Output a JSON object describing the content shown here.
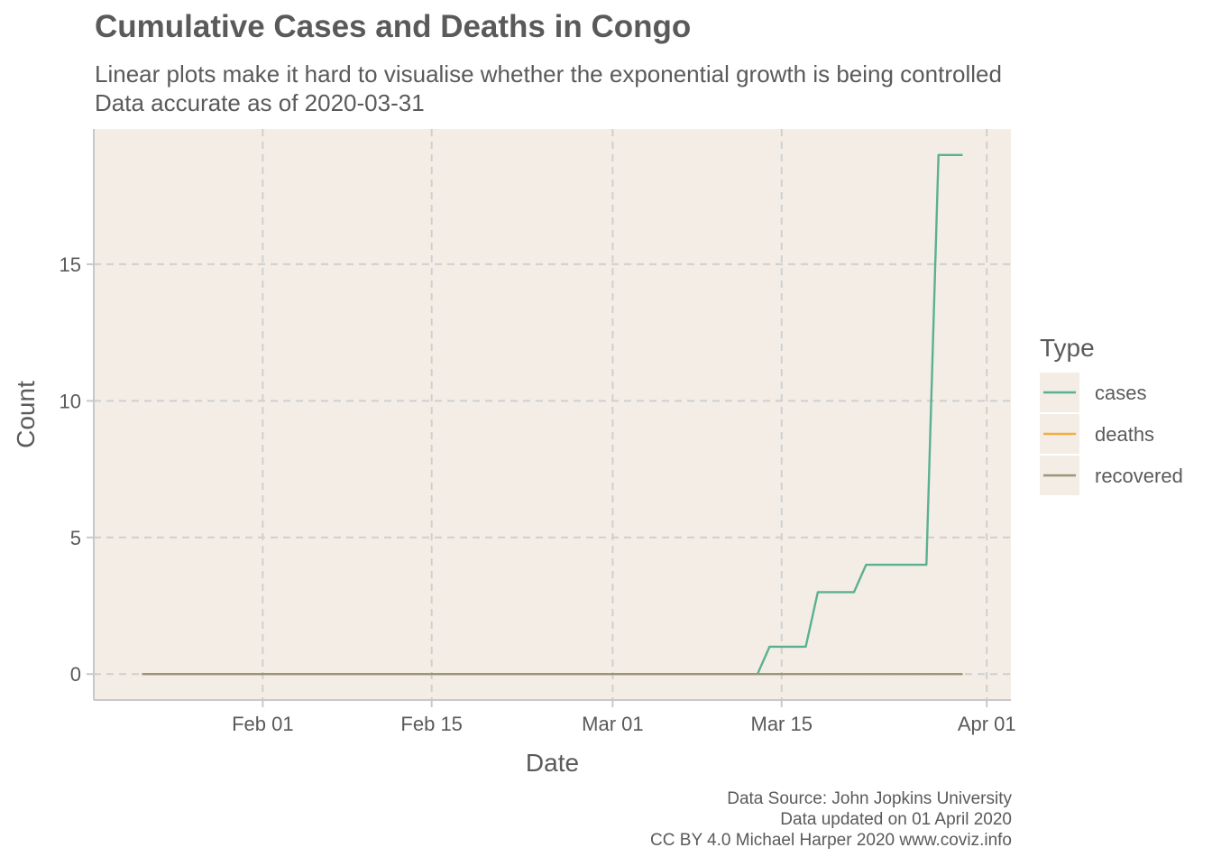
{
  "title": "Cumulative Cases and Deaths in Congo",
  "subtitle_line1": "Linear plots make it hard to visualise whether the exponential growth is being controlled",
  "subtitle_line2": "Data accurate as of 2020-03-31",
  "caption": {
    "line1": "Data Source: John Jopkins University",
    "line2": "Data updated on 01 April 2020",
    "line3": "CC BY 4.0 Michael Harper 2020 www.coviz.info"
  },
  "colors": {
    "panel_bg": "#f3ede6",
    "grid": "#cfcfcf",
    "axis": "#c8c8c8",
    "text": "#5a5a5a"
  },
  "chart_data": {
    "type": "line",
    "xlabel": "Date",
    "ylabel": "Count",
    "x_ticks": [
      {
        "date": "2020-02-01",
        "label": "Feb 01"
      },
      {
        "date": "2020-02-15",
        "label": "Feb 15"
      },
      {
        "date": "2020-03-01",
        "label": "Mar 01"
      },
      {
        "date": "2020-03-15",
        "label": "Mar 15"
      },
      {
        "date": "2020-04-01",
        "label": "Apr 01"
      }
    ],
    "y_ticks": [
      0,
      5,
      10,
      15
    ],
    "xlim": [
      "2020-01-18",
      "2020-04-03"
    ],
    "ylim": [
      -0.95,
      19.95
    ],
    "grid": true,
    "grid_style": "dashed",
    "legend": {
      "title": "Type",
      "position": "right"
    },
    "series": [
      {
        "name": "cases",
        "color": "#5ab190",
        "points": [
          {
            "date": "2020-01-22",
            "value": 0
          },
          {
            "date": "2020-03-13",
            "value": 0
          },
          {
            "date": "2020-03-14",
            "value": 1
          },
          {
            "date": "2020-03-17",
            "value": 1
          },
          {
            "date": "2020-03-18",
            "value": 3
          },
          {
            "date": "2020-03-21",
            "value": 3
          },
          {
            "date": "2020-03-22",
            "value": 4
          },
          {
            "date": "2020-03-27",
            "value": 4
          },
          {
            "date": "2020-03-28",
            "value": 19
          },
          {
            "date": "2020-03-30",
            "value": 19
          }
        ]
      },
      {
        "name": "deaths",
        "color": "#f6ad3e",
        "points": [
          {
            "date": "2020-01-22",
            "value": 0
          },
          {
            "date": "2020-03-30",
            "value": 0
          }
        ]
      },
      {
        "name": "recovered",
        "color": "#9c9474",
        "points": [
          {
            "date": "2020-01-22",
            "value": 0
          },
          {
            "date": "2020-03-30",
            "value": 0
          }
        ]
      }
    ]
  }
}
